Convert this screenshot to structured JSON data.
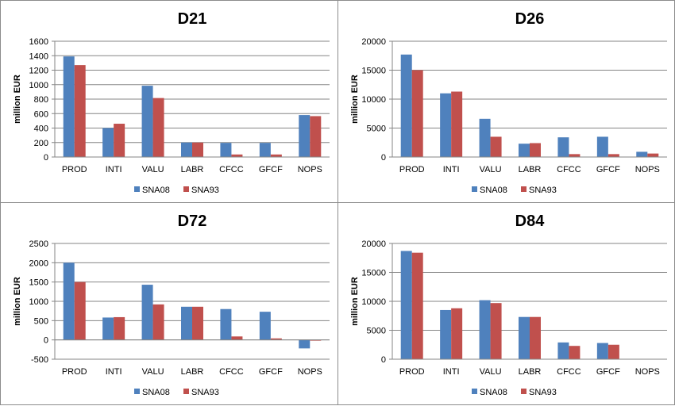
{
  "colors": {
    "SNA08": "#4f81bd",
    "SNA93": "#c0504d",
    "grid": "#868686"
  },
  "chart_data": [
    {
      "type": "bar",
      "title": "D21",
      "ylabel": "million EUR",
      "categories": [
        "PROD",
        "INTI",
        "VALU",
        "LABR",
        "CFCC",
        "GFCF",
        "NOPS"
      ],
      "series": [
        {
          "name": "SNA08",
          "values": [
            1390,
            400,
            985,
            200,
            195,
            195,
            580
          ]
        },
        {
          "name": "SNA93",
          "values": [
            1270,
            460,
            815,
            200,
            35,
            35,
            565
          ]
        }
      ],
      "ylim": [
        0,
        1600
      ],
      "yticks": [
        "0",
        "200",
        "400",
        "600",
        "800",
        "1000",
        "1200",
        "1400",
        "1600"
      ],
      "grid": true,
      "legend": "bottom"
    },
    {
      "type": "bar",
      "title": "D26",
      "ylabel": "million EUR",
      "categories": [
        "PROD",
        "INTI",
        "VALU",
        "LABR",
        "CFCC",
        "GFCF",
        "NOPS"
      ],
      "series": [
        {
          "name": "SNA08",
          "values": [
            17700,
            11000,
            6600,
            2300,
            3400,
            3500,
            900
          ]
        },
        {
          "name": "SNA93",
          "values": [
            15000,
            11300,
            3500,
            2400,
            500,
            500,
            600
          ]
        }
      ],
      "ylim": [
        0,
        20000
      ],
      "yticks": [
        "0",
        "5000",
        "10000",
        "15000",
        "20000"
      ],
      "grid": true,
      "legend": "bottom"
    },
    {
      "type": "bar",
      "title": "D72",
      "ylabel": "million EUR",
      "categories": [
        "PROD",
        "INTI",
        "VALU",
        "LABR",
        "CFCC",
        "GFCF",
        "NOPS"
      ],
      "series": [
        {
          "name": "SNA08",
          "values": [
            2000,
            580,
            1430,
            860,
            800,
            730,
            -220
          ]
        },
        {
          "name": "SNA93",
          "values": [
            1500,
            590,
            920,
            860,
            90,
            40,
            -20
          ]
        }
      ],
      "ylim": [
        -500,
        2500
      ],
      "yticks": [
        "-500",
        "0",
        "500",
        "1000",
        "1500",
        "2000",
        "2500"
      ],
      "grid": true,
      "legend": "bottom"
    },
    {
      "type": "bar",
      "title": "D84",
      "ylabel": "million EUR",
      "categories": [
        "PROD",
        "INTI",
        "VALU",
        "LABR",
        "CFCC",
        "GFCF",
        "NOPS"
      ],
      "series": [
        {
          "name": "SNA08",
          "values": [
            18700,
            8500,
            10200,
            7300,
            2900,
            2800,
            0
          ]
        },
        {
          "name": "SNA93",
          "values": [
            18400,
            8800,
            9700,
            7300,
            2300,
            2500,
            0
          ]
        }
      ],
      "ylim": [
        0,
        20000
      ],
      "yticks": [
        "0",
        "5000",
        "10000",
        "15000",
        "20000"
      ],
      "grid": true,
      "legend": "bottom"
    }
  ]
}
